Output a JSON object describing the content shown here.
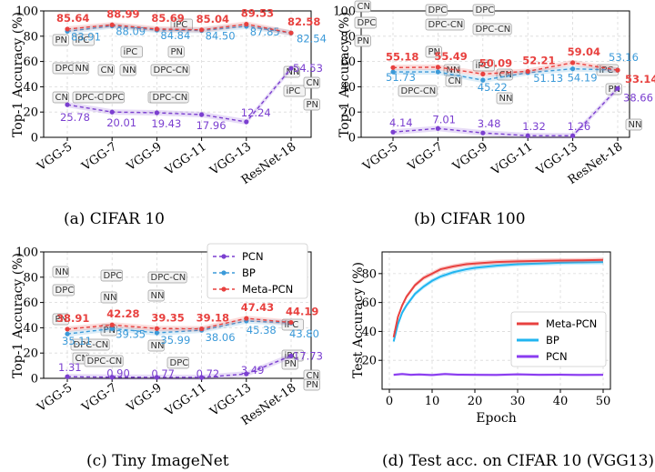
{
  "colors": {
    "meta": "#e8413f",
    "bp": "#3b9ad9",
    "pcn": "#7b3fd0",
    "bp_bright": "#21b5f0",
    "pcn_bright": "#8a3cf0"
  },
  "chart_data": [
    {
      "type": "line",
      "caption": "(a) CIFAR 10",
      "ylabel": "Top-1 Accuracy (%)",
      "ylim": [
        0,
        100
      ],
      "yticks": [
        "0",
        "20",
        "40",
        "60",
        "80",
        "100"
      ],
      "categories": [
        "VGG-5",
        "VGG-7",
        "VGG-9",
        "VGG-11",
        "VGG-13",
        "ResNet-18"
      ],
      "series": [
        {
          "name": "Meta-PCN",
          "values": [
            85.64,
            88.99,
            85.69,
            85.04,
            89.53,
            82.58
          ],
          "labels": [
            "85.64",
            "88.99",
            "85.69",
            "85.04",
            "89.53",
            "82.58"
          ]
        },
        {
          "name": "BP",
          "values": [
            83.91,
            88.09,
            84.84,
            84.5,
            87.85,
            82.54
          ],
          "labels": [
            "83.91",
            "88.09",
            "84.84",
            "84.50",
            "87.85",
            "82.54"
          ]
        },
        {
          "name": "PCN",
          "values": [
            25.78,
            20.01,
            19.43,
            17.96,
            12.24,
            54.53
          ],
          "labels": [
            "25.78",
            "20.01",
            "19.43",
            "17.96",
            "12.24",
            "54.53"
          ]
        }
      ],
      "annotations": [
        "PN",
        "iPC",
        "DPC",
        "NN",
        "CN",
        "DPC-CN",
        "DPC",
        "CN",
        "iPC",
        "NN",
        "DPC-CN",
        "iPC",
        "PN",
        "DPC-CN",
        "DPC-CN",
        "NN",
        "iPC",
        "CN",
        "PN"
      ]
    },
    {
      "type": "line",
      "caption": "(b) CIFAR 100",
      "ylabel": "Top-1 Accuracy (%)",
      "ylim": [
        0,
        100
      ],
      "yticks": [
        "0",
        "20",
        "40",
        "60",
        "80",
        "100"
      ],
      "categories": [
        "VGG-5",
        "VGG-7",
        "VGG-9",
        "VGG-11",
        "VGG-13",
        "ResNet-18"
      ],
      "series": [
        {
          "name": "Meta-PCN",
          "values": [
            55.18,
            55.49,
            50.09,
            52.21,
            59.04,
            53.14
          ],
          "labels": [
            "55.18",
            "55.49",
            "50.09",
            "52.21",
            "59.04",
            "53.14"
          ]
        },
        {
          "name": "BP",
          "values": [
            51.73,
            51.73,
            45.22,
            51.13,
            54.19,
            53.16
          ],
          "labels": [
            "51.73",
            "",
            "45.22",
            "51.13",
            "54.19",
            "53.16"
          ]
        },
        {
          "name": "PCN",
          "values": [
            4.14,
            7.01,
            3.48,
            1.32,
            1.26,
            38.66
          ],
          "labels": [
            "4.14",
            "7.01",
            "3.48",
            "1.32",
            "1.26",
            "38.66"
          ]
        }
      ],
      "annotations": [
        "CN",
        "DPC",
        "PN",
        "DPC",
        "DPC-CN",
        "PN",
        "DPC",
        "DPC-CN",
        "iPC",
        "NN",
        "DPC-CN",
        "CN",
        "CN",
        "NN",
        "iPC",
        "PN",
        "NN"
      ]
    },
    {
      "type": "line",
      "caption": "(c) Tiny ImageNet",
      "ylabel": "Top-1 Accuracy (%)",
      "ylim": [
        0,
        100
      ],
      "yticks": [
        "0",
        "20",
        "40",
        "60",
        "80",
        "100"
      ],
      "categories": [
        "VGG-5",
        "VGG-7",
        "VGG-9",
        "VGG-11",
        "VGG-13",
        "ResNet-18"
      ],
      "legend": [
        "PCN",
        "BP",
        "Meta-PCN"
      ],
      "series": [
        {
          "name": "Meta-PCN",
          "values": [
            38.91,
            42.28,
            39.35,
            39.18,
            47.43,
            44.19
          ],
          "labels": [
            "38.91",
            "42.28",
            "39.35",
            "39.18",
            "47.43",
            "44.19"
          ]
        },
        {
          "name": "BP",
          "values": [
            35.11,
            39.35,
            35.99,
            38.06,
            45.38,
            43.8
          ],
          "labels": [
            "35.11",
            "39.35",
            "35.99",
            "38.06",
            "45.38",
            "43.80"
          ]
        },
        {
          "name": "PCN",
          "values": [
            1.31,
            0.9,
            0.77,
            0.72,
            3.49,
            17.73
          ],
          "labels": [
            "1.31",
            "0.90",
            "0.77",
            "0.72",
            "3.49",
            "17.73"
          ]
        }
      ],
      "annotations": [
        "NN",
        "DPC",
        "PN",
        "DPC-CN",
        "CN",
        "DPC",
        "NN",
        "PN",
        "DPC-CN",
        "DPC-CN",
        "NN",
        "iPC",
        "PN",
        "DPC",
        "NN",
        "iPC",
        "CN",
        "PN"
      ]
    },
    {
      "type": "line",
      "caption": "(d) Test acc. on CIFAR 10 (VGG13)",
      "xlabel": "Epoch",
      "ylabel": "Test Accuracy (%)",
      "xlim": [
        0,
        50
      ],
      "ylim": [
        0,
        95
      ],
      "xticks": [
        "0",
        "10",
        "20",
        "30",
        "40",
        "50"
      ],
      "yticks": [
        "20",
        "40",
        "60",
        "80"
      ],
      "legend": [
        "Meta-PCN",
        "BP",
        "PCN"
      ],
      "series": [
        {
          "name": "Meta-PCN",
          "x": [
            1,
            2,
            3,
            4,
            5,
            6,
            8,
            10,
            12,
            15,
            18,
            20,
            25,
            30,
            35,
            40,
            45,
            50
          ],
          "values": [
            36,
            50,
            58,
            64,
            68,
            72,
            77,
            80,
            83,
            85,
            86.5,
            87,
            88,
            88.5,
            88.8,
            89,
            89.2,
            89.5
          ]
        },
        {
          "name": "BP",
          "x": [
            1,
            2,
            3,
            4,
            5,
            6,
            8,
            10,
            12,
            15,
            18,
            20,
            25,
            30,
            35,
            40,
            45,
            50
          ],
          "values": [
            33,
            45,
            53,
            58,
            62,
            66,
            71,
            75,
            78,
            81,
            83,
            84,
            85.5,
            86.5,
            87,
            87.5,
            87.8,
            88
          ]
        },
        {
          "name": "PCN",
          "x": [
            1,
            3,
            5,
            7,
            10,
            13,
            16,
            20,
            25,
            30,
            35,
            40,
            45,
            50
          ],
          "values": [
            10,
            10.5,
            10,
            10.2,
            9.8,
            10.5,
            10.1,
            10,
            9.9,
            10.3,
            10,
            10.1,
            9.9,
            10
          ]
        }
      ]
    }
  ]
}
